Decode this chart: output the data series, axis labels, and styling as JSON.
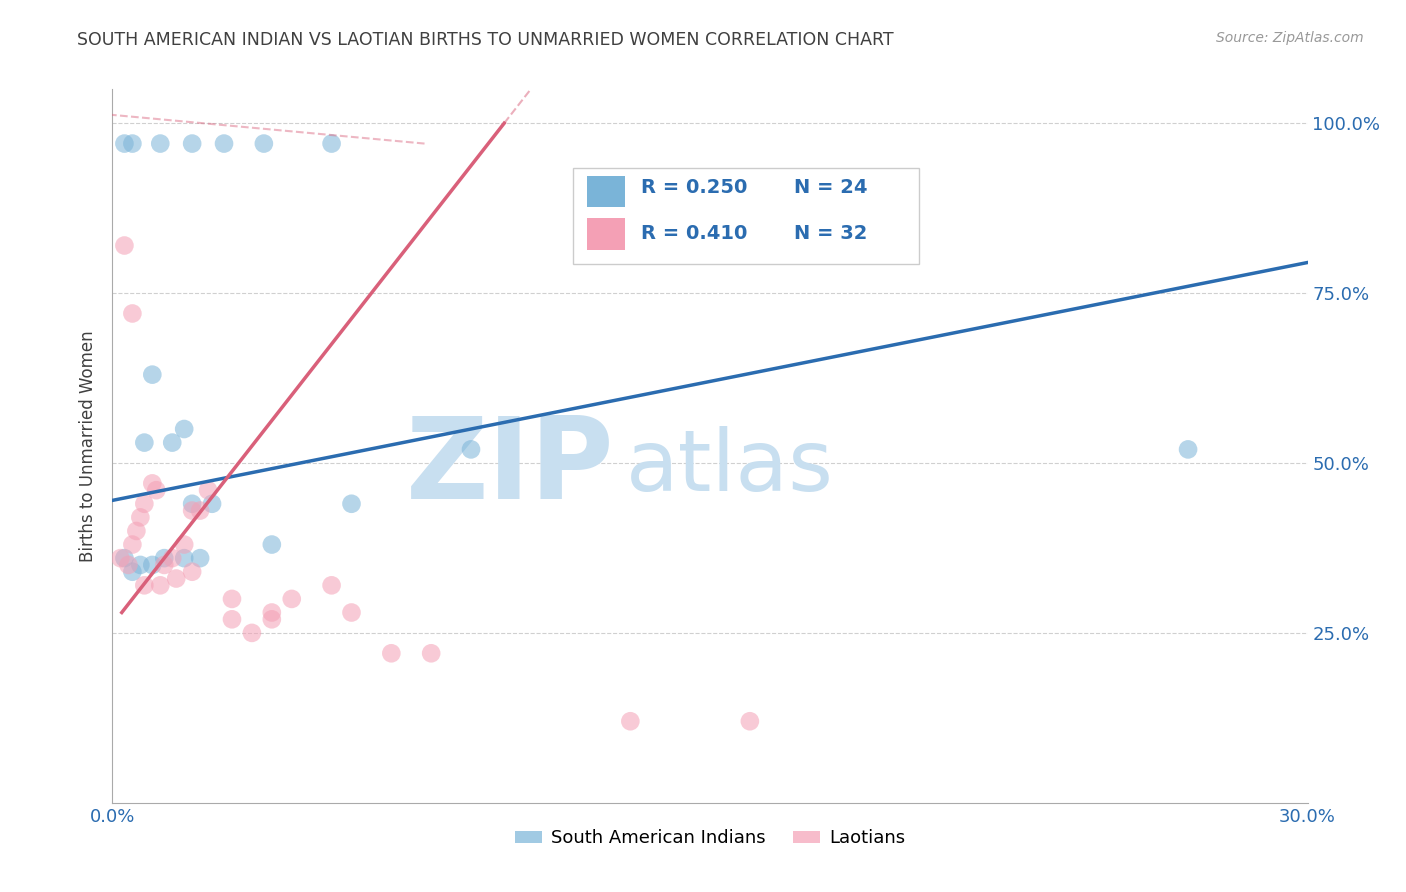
{
  "title": "SOUTH AMERICAN INDIAN VS LAOTIAN BIRTHS TO UNMARRIED WOMEN CORRELATION CHART",
  "source": "Source: ZipAtlas.com",
  "ylabel": "Births to Unmarried Women",
  "xlim": [
    0.0,
    0.3
  ],
  "ylim": [
    0.0,
    1.05
  ],
  "legend_labels": [
    "South American Indians",
    "Laotians"
  ],
  "legend_r_blue": "R = 0.250",
  "legend_n_blue": "N = 24",
  "legend_r_pink": "R = 0.410",
  "legend_n_pink": "N = 32",
  "blue_color": "#7ab4d8",
  "pink_color": "#f4a0b5",
  "blue_line_color": "#2b6cb0",
  "pink_line_color": "#d9607a",
  "watermark_zip": "ZIP",
  "watermark_atlas": "atlas",
  "watermark_color": "#c8dff0",
  "title_color": "#404040",
  "title_fontsize": 12.5,
  "axis_label_color": "#404040",
  "tick_color": "#2b6cb0",
  "grid_color": "#d0d0d0",
  "background_color": "#ffffff",
  "dot_size": 180,
  "dot_alpha": 0.55,
  "sa_x": [
    0.003,
    0.005,
    0.012,
    0.02,
    0.028,
    0.038,
    0.055,
    0.01,
    0.018,
    0.008,
    0.015,
    0.02,
    0.025,
    0.04,
    0.003,
    0.005,
    0.007,
    0.01,
    0.013,
    0.018,
    0.022,
    0.06,
    0.09,
    0.27
  ],
  "sa_y": [
    0.97,
    0.97,
    0.97,
    0.97,
    0.97,
    0.97,
    0.97,
    0.63,
    0.55,
    0.53,
    0.53,
    0.44,
    0.44,
    0.38,
    0.36,
    0.34,
    0.35,
    0.35,
    0.36,
    0.36,
    0.36,
    0.44,
    0.52,
    0.52
  ],
  "la_x": [
    0.003,
    0.005,
    0.002,
    0.004,
    0.005,
    0.006,
    0.007,
    0.008,
    0.01,
    0.011,
    0.013,
    0.015,
    0.018,
    0.02,
    0.022,
    0.024,
    0.008,
    0.012,
    0.016,
    0.02,
    0.03,
    0.035,
    0.04,
    0.055,
    0.03,
    0.04,
    0.045,
    0.06,
    0.07,
    0.08,
    0.13,
    0.16
  ],
  "la_y": [
    0.82,
    0.72,
    0.36,
    0.35,
    0.38,
    0.4,
    0.42,
    0.44,
    0.47,
    0.46,
    0.35,
    0.36,
    0.38,
    0.43,
    0.43,
    0.46,
    0.32,
    0.32,
    0.33,
    0.34,
    0.27,
    0.25,
    0.27,
    0.32,
    0.3,
    0.28,
    0.3,
    0.28,
    0.22,
    0.22,
    0.12,
    0.12
  ],
  "blue_trend_x0": 0.0,
  "blue_trend_y0": 0.445,
  "blue_trend_x1": 0.3,
  "blue_trend_y1": 0.795,
  "pink_trend_x0": 0.005,
  "pink_trend_y0": 0.3,
  "pink_trend_x1": 0.065,
  "pink_trend_y1": 0.75
}
